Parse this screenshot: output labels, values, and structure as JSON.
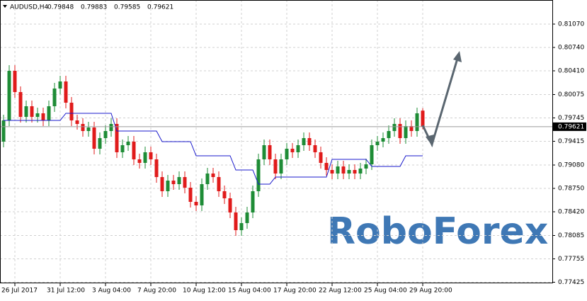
{
  "header": {
    "symbol": "AUDUSD,H4"
  },
  "watermark": "RoboForex",
  "chart_data": {
    "type": "candlestick",
    "categories": [
      null,
      null,
      "26 Jul 2017",
      null,
      null,
      null,
      null,
      null,
      null,
      null,
      "31 Jul 12:00",
      null,
      null,
      null,
      null,
      null,
      null,
      null,
      "3 Aug 04:00",
      null,
      null,
      null,
      null,
      null,
      null,
      null,
      "7 Aug 20:00",
      null,
      null,
      null,
      null,
      null,
      null,
      null,
      "10 Aug 12:00",
      null,
      null,
      null,
      null,
      null,
      null,
      null,
      "15 Aug 04:00",
      null,
      null,
      null,
      null,
      null,
      null,
      null,
      "17 Aug 20:00",
      null,
      null,
      null,
      null,
      null,
      null,
      null,
      "22 Aug 12:00",
      null,
      null,
      null,
      null,
      null,
      null,
      null,
      "25 Aug 04:00",
      null,
      null,
      null,
      null,
      null,
      null,
      null,
      "29 Aug 20:00"
    ],
    "open": [
      0.7941,
      0.7971,
      0.8041,
      0.8011,
      0.7976,
      0.7991,
      0.7976,
      0.7981,
      0.7971,
      0.7991,
      0.8016,
      0.8026,
      0.7996,
      0.7971,
      0.7966,
      0.7956,
      0.7961,
      0.7931,
      0.7946,
      0.7956,
      0.7966,
      0.7926,
      0.7936,
      0.7941,
      0.7916,
      0.7911,
      0.7926,
      0.7916,
      0.7891,
      0.7871,
      0.7886,
      0.7881,
      0.7891,
      0.7876,
      0.7856,
      0.7851,
      0.7881,
      0.7896,
      0.7891,
      0.7871,
      0.7861,
      0.7841,
      0.7816,
      0.7826,
      0.7841,
      0.7871,
      0.7916,
      0.7936,
      0.7916,
      0.7896,
      0.7916,
      0.7931,
      0.7926,
      0.7936,
      0.7946,
      0.7936,
      0.7926,
      0.7911,
      0.7901,
      0.7896,
      0.7906,
      0.7896,
      0.7901,
      0.7896,
      0.7903,
      0.7909,
      0.7936,
      0.7941,
      0.7946,
      0.7956,
      0.7966,
      0.7946,
      0.7963,
      0.7956,
      0.79848
    ],
    "high": [
      0.7979,
      0.8049,
      0.8049,
      0.8019,
      0.7999,
      0.7999,
      0.7989,
      0.7989,
      0.7999,
      0.8024,
      0.8034,
      0.8034,
      0.8004,
      0.7979,
      0.7974,
      0.7969,
      0.7969,
      0.7954,
      0.7964,
      0.7974,
      0.7974,
      0.7944,
      0.7949,
      0.7949,
      0.7924,
      0.7934,
      0.7934,
      0.7924,
      0.7899,
      0.7894,
      0.7894,
      0.7899,
      0.7899,
      0.7884,
      0.7864,
      0.7889,
      0.7904,
      0.7904,
      0.7899,
      0.7879,
      0.7869,
      0.7849,
      0.7834,
      0.7849,
      0.7879,
      0.7924,
      0.7944,
      0.7944,
      0.7924,
      0.7924,
      0.7939,
      0.7939,
      0.7944,
      0.7954,
      0.7954,
      0.7944,
      0.7934,
      0.7919,
      0.7909,
      0.7914,
      0.7914,
      0.7909,
      0.7909,
      0.7911,
      0.7917,
      0.7944,
      0.7949,
      0.7954,
      0.7964,
      0.7974,
      0.7974,
      0.7971,
      0.7971,
      0.7989,
      0.79883
    ],
    "low": [
      0.7933,
      0.7963,
      0.8003,
      0.7968,
      0.7968,
      0.7968,
      0.7968,
      0.7963,
      0.7963,
      0.7983,
      0.8008,
      0.7988,
      0.7963,
      0.7958,
      0.7948,
      0.7948,
      0.7923,
      0.7923,
      0.7938,
      0.7948,
      0.7918,
      0.7918,
      0.7928,
      0.7908,
      0.7903,
      0.7903,
      0.7908,
      0.7883,
      0.7863,
      0.7863,
      0.7873,
      0.7873,
      0.7868,
      0.7848,
      0.7843,
      0.7843,
      0.7873,
      0.7883,
      0.7863,
      0.7853,
      0.7833,
      0.7808,
      0.7808,
      0.7818,
      0.7833,
      0.7863,
      0.7908,
      0.7908,
      0.7888,
      0.7888,
      0.7908,
      0.7918,
      0.7918,
      0.7928,
      0.7928,
      0.7918,
      0.7903,
      0.7893,
      0.7888,
      0.7888,
      0.7888,
      0.7888,
      0.7888,
      0.7888,
      0.7895,
      0.7901,
      0.7928,
      0.7933,
      0.7938,
      0.7948,
      0.7938,
      0.7938,
      0.7948,
      0.7948,
      0.79585
    ],
    "close": [
      0.7971,
      0.8041,
      0.8011,
      0.7976,
      0.7991,
      0.7976,
      0.7981,
      0.7971,
      0.7991,
      0.8016,
      0.8026,
      0.7996,
      0.7971,
      0.7966,
      0.7956,
      0.7961,
      0.7931,
      0.7946,
      0.7956,
      0.7966,
      0.7926,
      0.7936,
      0.7941,
      0.7916,
      0.7911,
      0.7926,
      0.7916,
      0.7891,
      0.7871,
      0.7886,
      0.7881,
      0.7891,
      0.7876,
      0.7856,
      0.7851,
      0.7881,
      0.7896,
      0.7891,
      0.7871,
      0.7861,
      0.7841,
      0.7816,
      0.7826,
      0.7841,
      0.7871,
      0.7916,
      0.7936,
      0.7916,
      0.7896,
      0.7916,
      0.7931,
      0.7926,
      0.7936,
      0.7946,
      0.7936,
      0.7926,
      0.7911,
      0.7901,
      0.7896,
      0.7906,
      0.7896,
      0.7901,
      0.7896,
      0.7903,
      0.7909,
      0.7936,
      0.7941,
      0.7946,
      0.7956,
      0.7966,
      0.7946,
      0.7963,
      0.7956,
      0.7981,
      0.79621
    ],
    "up_color": "#1e8c36",
    "down_color": "#e01b1b",
    "kijun": {
      "color": "#1a1acc",
      "values": [
        0.7971,
        0.7971,
        0.7971,
        0.7971,
        0.7971,
        0.7971,
        0.7971,
        0.7971,
        0.7971,
        0.7971,
        0.7971,
        0.7981,
        0.7981,
        0.7981,
        0.7981,
        0.7981,
        0.7981,
        0.7981,
        0.7981,
        0.7981,
        0.7956,
        0.7956,
        0.7956,
        0.7956,
        0.7956,
        0.7956,
        0.7956,
        0.7956,
        0.7941,
        0.7941,
        0.7941,
        0.7941,
        0.7941,
        0.7941,
        0.7921,
        0.7921,
        0.7921,
        0.7921,
        0.7921,
        0.7921,
        0.7921,
        0.7901,
        0.7901,
        0.7901,
        0.7901,
        0.7881,
        0.7881,
        0.7881,
        0.7891,
        0.7891,
        0.7891,
        0.7891,
        0.7891,
        0.7891,
        0.7891,
        0.7891,
        0.7891,
        0.7891,
        0.7916,
        0.7916,
        0.7916,
        0.7916,
        0.7916,
        0.7916,
        0.7916,
        0.7906,
        0.7906,
        0.7906,
        0.7906,
        0.7906,
        0.7906,
        0.7921,
        0.7921,
        0.7921,
        0.7921
      ]
    },
    "ylim": [
      0.7741,
      0.8141
    ],
    "yticks": [
      {
        "value": 0.8107,
        "label": "0.81070"
      },
      {
        "value": 0.8074,
        "label": "0.80740"
      },
      {
        "value": 0.8041,
        "label": "0.80410"
      },
      0.80075,
      0.79745,
      0.79415,
      {
        "value": 0.7908,
        "label": "0.79080"
      },
      {
        "value": 0.7875,
        "label": "0.78750"
      },
      {
        "value": 0.7842,
        "label": "0.78420"
      },
      0.78085,
      0.77755,
      0.77425
    ],
    "grid": true
  }
}
